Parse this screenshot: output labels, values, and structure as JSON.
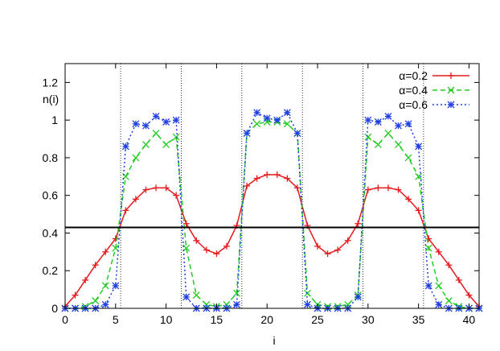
{
  "chart_data": {
    "type": "line",
    "xlabel": "i",
    "ylabel": "n(i)",
    "xlim": [
      0,
      41
    ],
    "ylim": [
      0,
      1.3
    ],
    "xticks": [
      0,
      5,
      10,
      15,
      20,
      25,
      30,
      35,
      40
    ],
    "yticks": [
      0,
      0.2,
      0.4,
      0.6,
      0.8,
      1,
      1.2
    ],
    "grid": false,
    "legend_position": "top-right",
    "hline": 0.43,
    "vlines": [
      5.5,
      11.5,
      17.5,
      23.5,
      29.5,
      35.5
    ],
    "x": [
      0,
      1,
      2,
      3,
      4,
      5,
      6,
      7,
      8,
      9,
      10,
      11,
      12,
      13,
      14,
      15,
      16,
      17,
      18,
      19,
      20,
      21,
      22,
      23,
      24,
      25,
      26,
      27,
      28,
      29,
      30,
      31,
      32,
      33,
      34,
      35,
      36,
      37,
      38,
      39,
      40,
      41
    ],
    "series": [
      {
        "name": "α=0.2",
        "color": "#e41a1c",
        "dash": "",
        "marker": "plus",
        "values": [
          0.01,
          0.07,
          0.15,
          0.23,
          0.3,
          0.37,
          0.52,
          0.58,
          0.63,
          0.64,
          0.64,
          0.6,
          0.45,
          0.36,
          0.31,
          0.29,
          0.33,
          0.44,
          0.65,
          0.69,
          0.71,
          0.71,
          0.69,
          0.64,
          0.44,
          0.33,
          0.29,
          0.31,
          0.36,
          0.45,
          0.63,
          0.64,
          0.64,
          0.63,
          0.58,
          0.52,
          0.37,
          0.3,
          0.23,
          0.15,
          0.07,
          0.01
        ]
      },
      {
        "name": "α=0.4",
        "color": "#22cc22",
        "dash": "6,4",
        "marker": "x",
        "values": [
          0.0,
          0.0,
          0.01,
          0.04,
          0.12,
          0.32,
          0.7,
          0.8,
          0.87,
          0.93,
          0.87,
          0.91,
          0.32,
          0.07,
          0.02,
          0.01,
          0.02,
          0.08,
          0.93,
          0.98,
          0.99,
          0.99,
          0.98,
          0.93,
          0.08,
          0.02,
          0.01,
          0.01,
          0.02,
          0.07,
          0.91,
          0.87,
          0.93,
          0.87,
          0.8,
          0.7,
          0.32,
          0.12,
          0.04,
          0.01,
          0.0,
          0.0
        ]
      },
      {
        "name": "α=0.6",
        "color": "#1f3fe0",
        "dash": "2,3",
        "marker": "star",
        "values": [
          0.0,
          0.0,
          0.0,
          0.0,
          0.02,
          0.12,
          0.86,
          0.98,
          0.97,
          1.02,
          0.99,
          1.0,
          0.06,
          0.0,
          0.0,
          0.0,
          0.0,
          0.02,
          0.93,
          1.04,
          1.01,
          1.0,
          1.04,
          0.93,
          0.02,
          0.0,
          0.0,
          0.0,
          0.0,
          0.06,
          1.0,
          0.99,
          1.02,
          0.97,
          0.98,
          0.86,
          0.12,
          0.02,
          0.0,
          0.0,
          0.0,
          0.0
        ]
      }
    ]
  }
}
